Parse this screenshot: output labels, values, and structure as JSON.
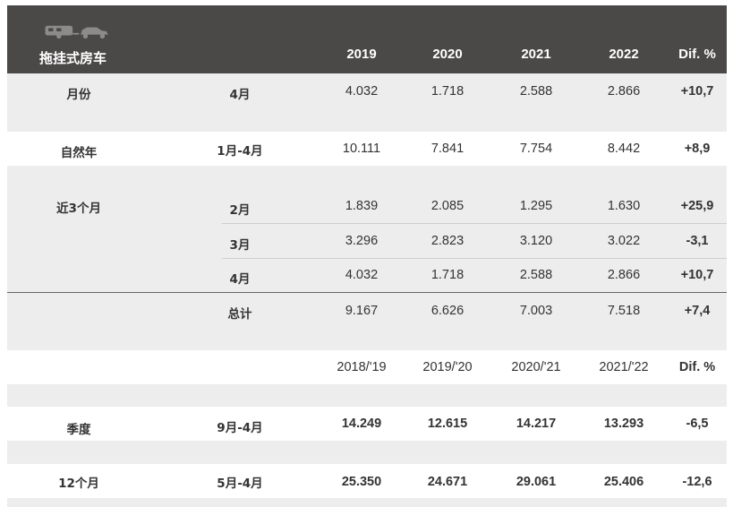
{
  "header": {
    "title": "拖挂式房车",
    "columns": [
      "2019",
      "2020",
      "2021",
      "2022",
      "Dif. %"
    ]
  },
  "rows": [
    {
      "group": "月份",
      "period": "4月",
      "values": [
        "4.032",
        "1.718",
        "2.588",
        "2.866",
        "+10,7"
      ]
    },
    {
      "group": "自然年",
      "period": "1月-4月",
      "values": [
        "10.111",
        "7.841",
        "7.754",
        "8.442",
        "+8,9"
      ]
    },
    {
      "group": "近3个月",
      "period": "2月",
      "values": [
        "1.839",
        "2.085",
        "1.295",
        "1.630",
        "+25,9"
      ]
    },
    {
      "group": "",
      "period": "3月",
      "values": [
        "3.296",
        "2.823",
        "3.120",
        "3.022",
        "-3,1"
      ]
    },
    {
      "group": "",
      "period": "4月",
      "values": [
        "4.032",
        "1.718",
        "2.588",
        "2.866",
        "+10,7"
      ]
    },
    {
      "group": "",
      "period": "总计",
      "values": [
        "9.167",
        "6.626",
        "7.003",
        "7.518",
        "+7,4"
      ]
    }
  ],
  "season_header": {
    "columns": [
      "2018/'19",
      "2019/'20",
      "2020/'21",
      "2021/'22",
      "Dif. %"
    ]
  },
  "season_rows": [
    {
      "group": "季度",
      "period": "9月-4月",
      "values": [
        "14.249",
        "12.615",
        "14.217",
        "13.293",
        "-6,5"
      ]
    },
    {
      "group": "12个月",
      "period": "5月-4月",
      "values": [
        "25.350",
        "24.671",
        "29.061",
        "25.406",
        "-12,6"
      ]
    }
  ],
  "icons": [
    "caravan-icon",
    "car-icon"
  ]
}
